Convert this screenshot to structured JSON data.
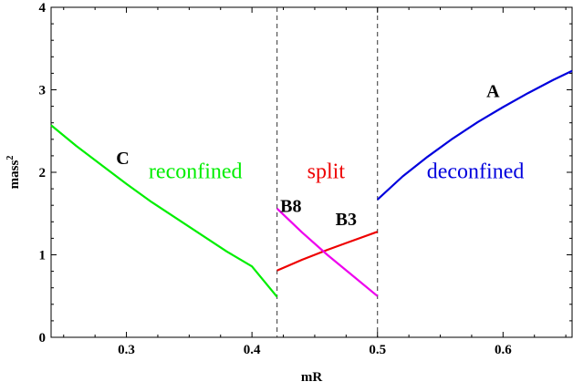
{
  "chart_data": {
    "type": "line",
    "xlabel": "mR",
    "ylabel": "mass",
    "ylabel_sup": "2",
    "xlim": [
      0.24,
      0.655
    ],
    "ylim": [
      0,
      4
    ],
    "xticks": [
      0.3,
      0.4,
      0.5,
      0.6
    ],
    "xtick_labels": [
      "0.3",
      "0.4",
      "0.5",
      "0.6"
    ],
    "yticks": [
      0,
      1,
      2,
      3,
      4
    ],
    "ytick_labels": [
      "0",
      "1",
      "2",
      "3",
      "4"
    ],
    "vlines": [
      0.42,
      0.5
    ],
    "series": [
      {
        "name": "C",
        "color": "#00ee00",
        "x": [
          0.24,
          0.26,
          0.28,
          0.3,
          0.32,
          0.34,
          0.36,
          0.38,
          0.4,
          0.42
        ],
        "y": [
          2.57,
          2.32,
          2.09,
          1.86,
          1.64,
          1.44,
          1.24,
          1.04,
          0.86,
          0.49
        ]
      },
      {
        "name": "B3",
        "color": "#ee0000",
        "x": [
          0.42,
          0.44,
          0.46,
          0.48,
          0.5
        ],
        "y": [
          0.81,
          0.94,
          1.06,
          1.17,
          1.28
        ]
      },
      {
        "name": "B8",
        "color": "#ee00ee",
        "x": [
          0.42,
          0.44,
          0.46,
          0.48,
          0.5
        ],
        "y": [
          1.56,
          1.27,
          1.0,
          0.75,
          0.5
        ]
      },
      {
        "name": "A",
        "color": "#0000dd",
        "x": [
          0.5,
          0.52,
          0.54,
          0.56,
          0.58,
          0.6,
          0.62,
          0.64,
          0.655
        ],
        "y": [
          1.67,
          1.95,
          2.19,
          2.41,
          2.61,
          2.79,
          2.96,
          3.12,
          3.23
        ]
      }
    ],
    "annotations": [
      {
        "text": "C",
        "x": 0.297,
        "y": 2.1
      },
      {
        "text": "B8",
        "x": 0.431,
        "y": 1.52
      },
      {
        "text": "B3",
        "x": 0.475,
        "y": 1.36
      },
      {
        "text": "A",
        "x": 0.592,
        "y": 2.91
      }
    ],
    "region_labels": [
      {
        "text": "reconfined",
        "x": 0.355,
        "y": 1.93,
        "color": "#00ee00"
      },
      {
        "text": "split",
        "x": 0.459,
        "y": 1.93,
        "color": "#ee0000"
      },
      {
        "text": "deconfined",
        "x": 0.578,
        "y": 1.93,
        "color": "#0000dd"
      }
    ]
  }
}
